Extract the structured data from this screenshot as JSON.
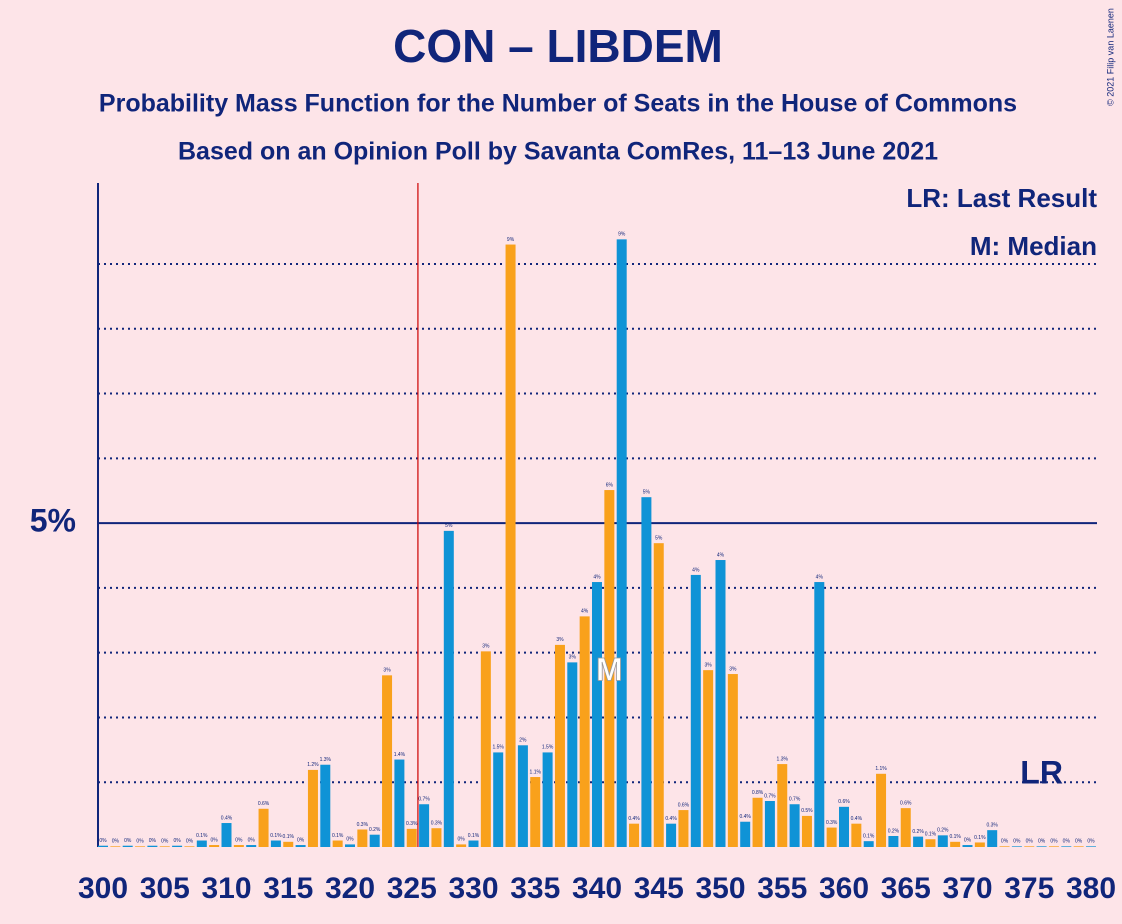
{
  "chart_data": {
    "type": "bar",
    "title": "CON – LIBDEM",
    "subtitle": "Probability Mass Function for the Number of Seats in the House of Commons",
    "subtitle2": "Based on an Opinion Poll by Savanta ComRes, 11–13 June 2021",
    "copyright": "© 2021 Filip van Laenen",
    "legend_lr": "LR: Last Result",
    "legend_m": "M: Median",
    "median": 341,
    "median_label": "M",
    "last_result": 376,
    "last_result_label": "LR",
    "majority": 326,
    "colors": [
      "#0f93d6",
      "#f9a11b"
    ],
    "x": [
      300,
      301,
      302,
      303,
      304,
      305,
      306,
      307,
      308,
      309,
      310,
      311,
      312,
      313,
      314,
      315,
      316,
      317,
      318,
      319,
      320,
      321,
      322,
      323,
      324,
      325,
      326,
      327,
      328,
      329,
      330,
      331,
      332,
      333,
      334,
      335,
      336,
      337,
      338,
      339,
      340,
      341,
      342,
      343,
      344,
      345,
      346,
      347,
      348,
      349,
      350,
      351,
      352,
      353,
      354,
      355,
      356,
      357,
      358,
      359,
      360,
      361,
      362,
      363,
      364,
      365,
      366,
      367,
      368,
      369,
      370,
      371,
      372,
      373,
      374,
      375,
      376,
      377,
      378,
      379,
      380
    ],
    "values": [
      0.02,
      0.01,
      0.02,
      0.01,
      0.02,
      0.01,
      0.02,
      0.01,
      0.1,
      0.03,
      0.37,
      0.03,
      0.03,
      0.59,
      0.1,
      0.08,
      0.03,
      1.19,
      1.27,
      0.1,
      0.04,
      0.27,
      0.19,
      2.65,
      1.35,
      0.28,
      0.66,
      0.29,
      4.88,
      0.04,
      0.1,
      3.02,
      1.46,
      9.3,
      1.57,
      1.08,
      1.46,
      3.12,
      2.85,
      3.56,
      4.09,
      5.51,
      9.38,
      0.36,
      5.4,
      4.69,
      0.36,
      0.57,
      4.2,
      2.73,
      4.43,
      2.67,
      0.39,
      0.76,
      0.71,
      1.28,
      0.66,
      0.48,
      4.09,
      0.3,
      0.62,
      0.36,
      0.09,
      1.13,
      0.17,
      0.6,
      0.16,
      0.12,
      0.18,
      0.08,
      0.03,
      0.07,
      0.26,
      0.01,
      0.01,
      0.01,
      0.01,
      0.01,
      0.01,
      0.01,
      0.01
    ],
    "value_labels": [
      "0%",
      "0%",
      "0%",
      "0%",
      "0%",
      "0%",
      "0%",
      "0%",
      "0.1%",
      "0%",
      "0.4%",
      "0%",
      "0%",
      "0.6%",
      "0.1%",
      "0.1%",
      "0%",
      "1.2%",
      "1.3%",
      "0.1%",
      "0%",
      "0.3%",
      "0.2%",
      "3%",
      "1.4%",
      "0.3%",
      "0.7%",
      "0.3%",
      "5%",
      "0%",
      "0.1%",
      "3%",
      "1.5%",
      "9%",
      "2%",
      "1.1%",
      "1.5%",
      "3%",
      "3%",
      "4%",
      "4%",
      "6%",
      "9%",
      "0.4%",
      "5%",
      "5%",
      "0.4%",
      "0.6%",
      "4%",
      "3%",
      "4%",
      "3%",
      "0.4%",
      "0.8%",
      "0.7%",
      "1.3%",
      "0.7%",
      "0.5%",
      "4%",
      "0.3%",
      "0.6%",
      "0.4%",
      "0.1%",
      "1.1%",
      "0.2%",
      "0.6%",
      "0.2%",
      "0.1%",
      "0.2%",
      "0.1%",
      "0%",
      "0.1%",
      "0.3%",
      "0%",
      "0%",
      "0%",
      "0%",
      "0%",
      "0%",
      "0%",
      "0%"
    ],
    "xlim": [
      300,
      380
    ],
    "xticks": [
      300,
      305,
      310,
      315,
      320,
      325,
      330,
      335,
      340,
      345,
      350,
      355,
      360,
      365,
      370,
      375,
      380
    ],
    "ylim": [
      0,
      10.25
    ],
    "yticks": [
      {
        "value": 5,
        "label": "5%"
      }
    ],
    "minor_yticks": [
      1,
      2,
      3,
      4,
      6,
      7,
      8,
      9
    ]
  }
}
